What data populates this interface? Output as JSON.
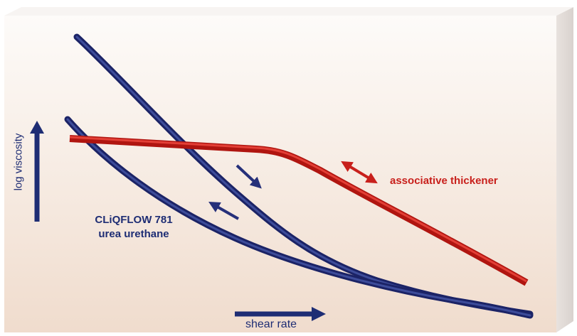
{
  "labels": {
    "associative": "associative thickener",
    "cliqflow_line1": "CLiQFLOW 781",
    "cliqflow_line2": "urea urethane",
    "x_axis": "shear rate",
    "y_axis": "log viscosity"
  },
  "colors": {
    "blue": "#26307a",
    "red": "#d41f1a",
    "bg_top": "#fbf7f3",
    "bg_bottom": "#f1ddd0"
  },
  "icons": {
    "x_axis_arrow": "right-arrow-icon",
    "y_axis_arrow": "up-arrow-icon",
    "shear_up_arrow": "down-right-arrow-icon",
    "shear_down_arrow": "up-left-arrow-icon",
    "thickener_arrow": "double-arrow-icon"
  }
}
